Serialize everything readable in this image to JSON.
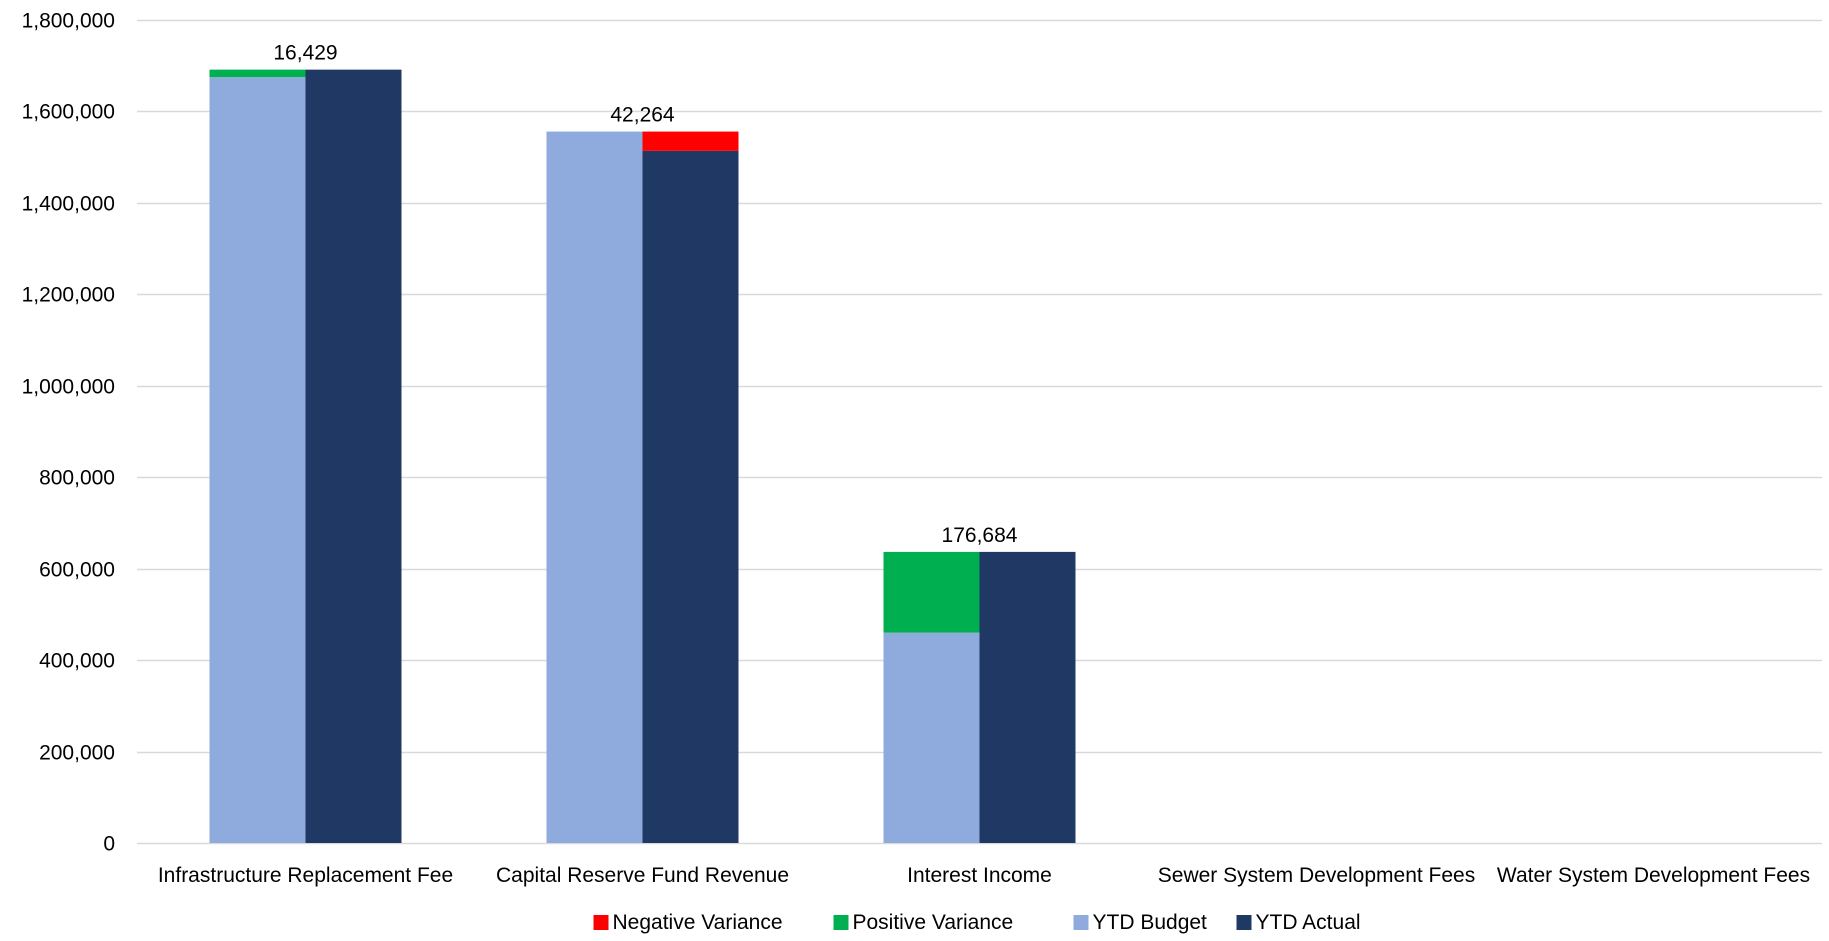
{
  "chart_data": {
    "type": "bar",
    "categories": [
      "Infrastructure Replacement Fee",
      "Capital Reserve Fund Revenue",
      "Interest Income",
      "Sewer System Development Fees",
      "Water System Development Fees"
    ],
    "series": [
      {
        "name": "YTD Budget",
        "values": [
          1675000,
          1556000,
          460000,
          0,
          0
        ]
      },
      {
        "name": "YTD Actual",
        "values": [
          1691429,
          1513736,
          636684,
          0,
          0
        ]
      },
      {
        "name": "Positive Variance",
        "values": [
          16429,
          0,
          176684,
          0,
          0
        ]
      },
      {
        "name": "Negative Variance",
        "values": [
          0,
          42264,
          0,
          0,
          0
        ]
      }
    ],
    "variance_labels": [
      "16,429",
      "42,264",
      "176,684",
      "",
      ""
    ],
    "ylim": [
      0,
      1800000
    ],
    "yticks": [
      0,
      200000,
      400000,
      600000,
      800000,
      1000000,
      1200000,
      1400000,
      1600000,
      1800000
    ],
    "ytick_labels": [
      "0",
      "200,000",
      "400,000",
      "600,000",
      "800,000",
      "1,000,000",
      "1,200,000",
      "1,400,000",
      "1,600,000",
      "1,800,000"
    ],
    "grid": true,
    "legend": {
      "position": "bottom",
      "entries": [
        "Negative Variance",
        "Positive Variance",
        "YTD Budget",
        "YTD Actual"
      ]
    },
    "colors": {
      "YTD Budget": "#8faadc",
      "YTD Actual": "#203864",
      "Positive Variance": "#00b050",
      "Negative Variance": "#ff0000",
      "grid": "#d9d9d9"
    }
  }
}
